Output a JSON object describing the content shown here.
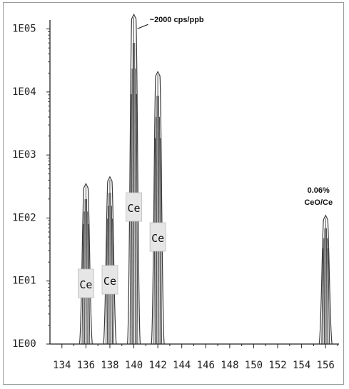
{
  "chart_data": {
    "type": "line",
    "title": "",
    "xlabel": "",
    "ylabel": "",
    "y_scale": "log",
    "xlim": [
      133,
      157
    ],
    "ylim": [
      1,
      200000
    ],
    "x_ticks": [
      134,
      136,
      138,
      140,
      142,
      144,
      146,
      148,
      150,
      152,
      154,
      156
    ],
    "x_tick_labels": [
      "134",
      "136",
      "138",
      "140",
      "142",
      "144",
      "146",
      "148",
      "150",
      "152",
      "154",
      "156"
    ],
    "y_ticks": [
      1,
      10,
      100,
      1000,
      10000,
      100000
    ],
    "y_tick_labels": [
      "1E00",
      "1E01",
      "1E02",
      "1E03",
      "1E04",
      "1E05"
    ],
    "grid": false,
    "series": [
      {
        "peaks": [
          {
            "x": 136,
            "y": 350,
            "label": "Ce"
          },
          {
            "x": 138,
            "y": 450,
            "label": "Ce"
          },
          {
            "x": 140,
            "y": 170000,
            "label": "Ce"
          },
          {
            "x": 142,
            "y": 21000,
            "label": "Ce"
          },
          {
            "x": 156,
            "y": 110,
            "label": ""
          }
        ]
      }
    ],
    "annotations": [
      {
        "text": "~2000 cps/ppb",
        "x": 140,
        "y": 170000
      },
      {
        "text": "0.06%",
        "x": 156,
        "y": 110
      },
      {
        "text": "CeO/Ce",
        "x": 156,
        "y": 110
      }
    ],
    "colors": {
      "peak": "#3a3a3a",
      "axis": "#222222",
      "label_box": "#e6e6e6"
    }
  }
}
